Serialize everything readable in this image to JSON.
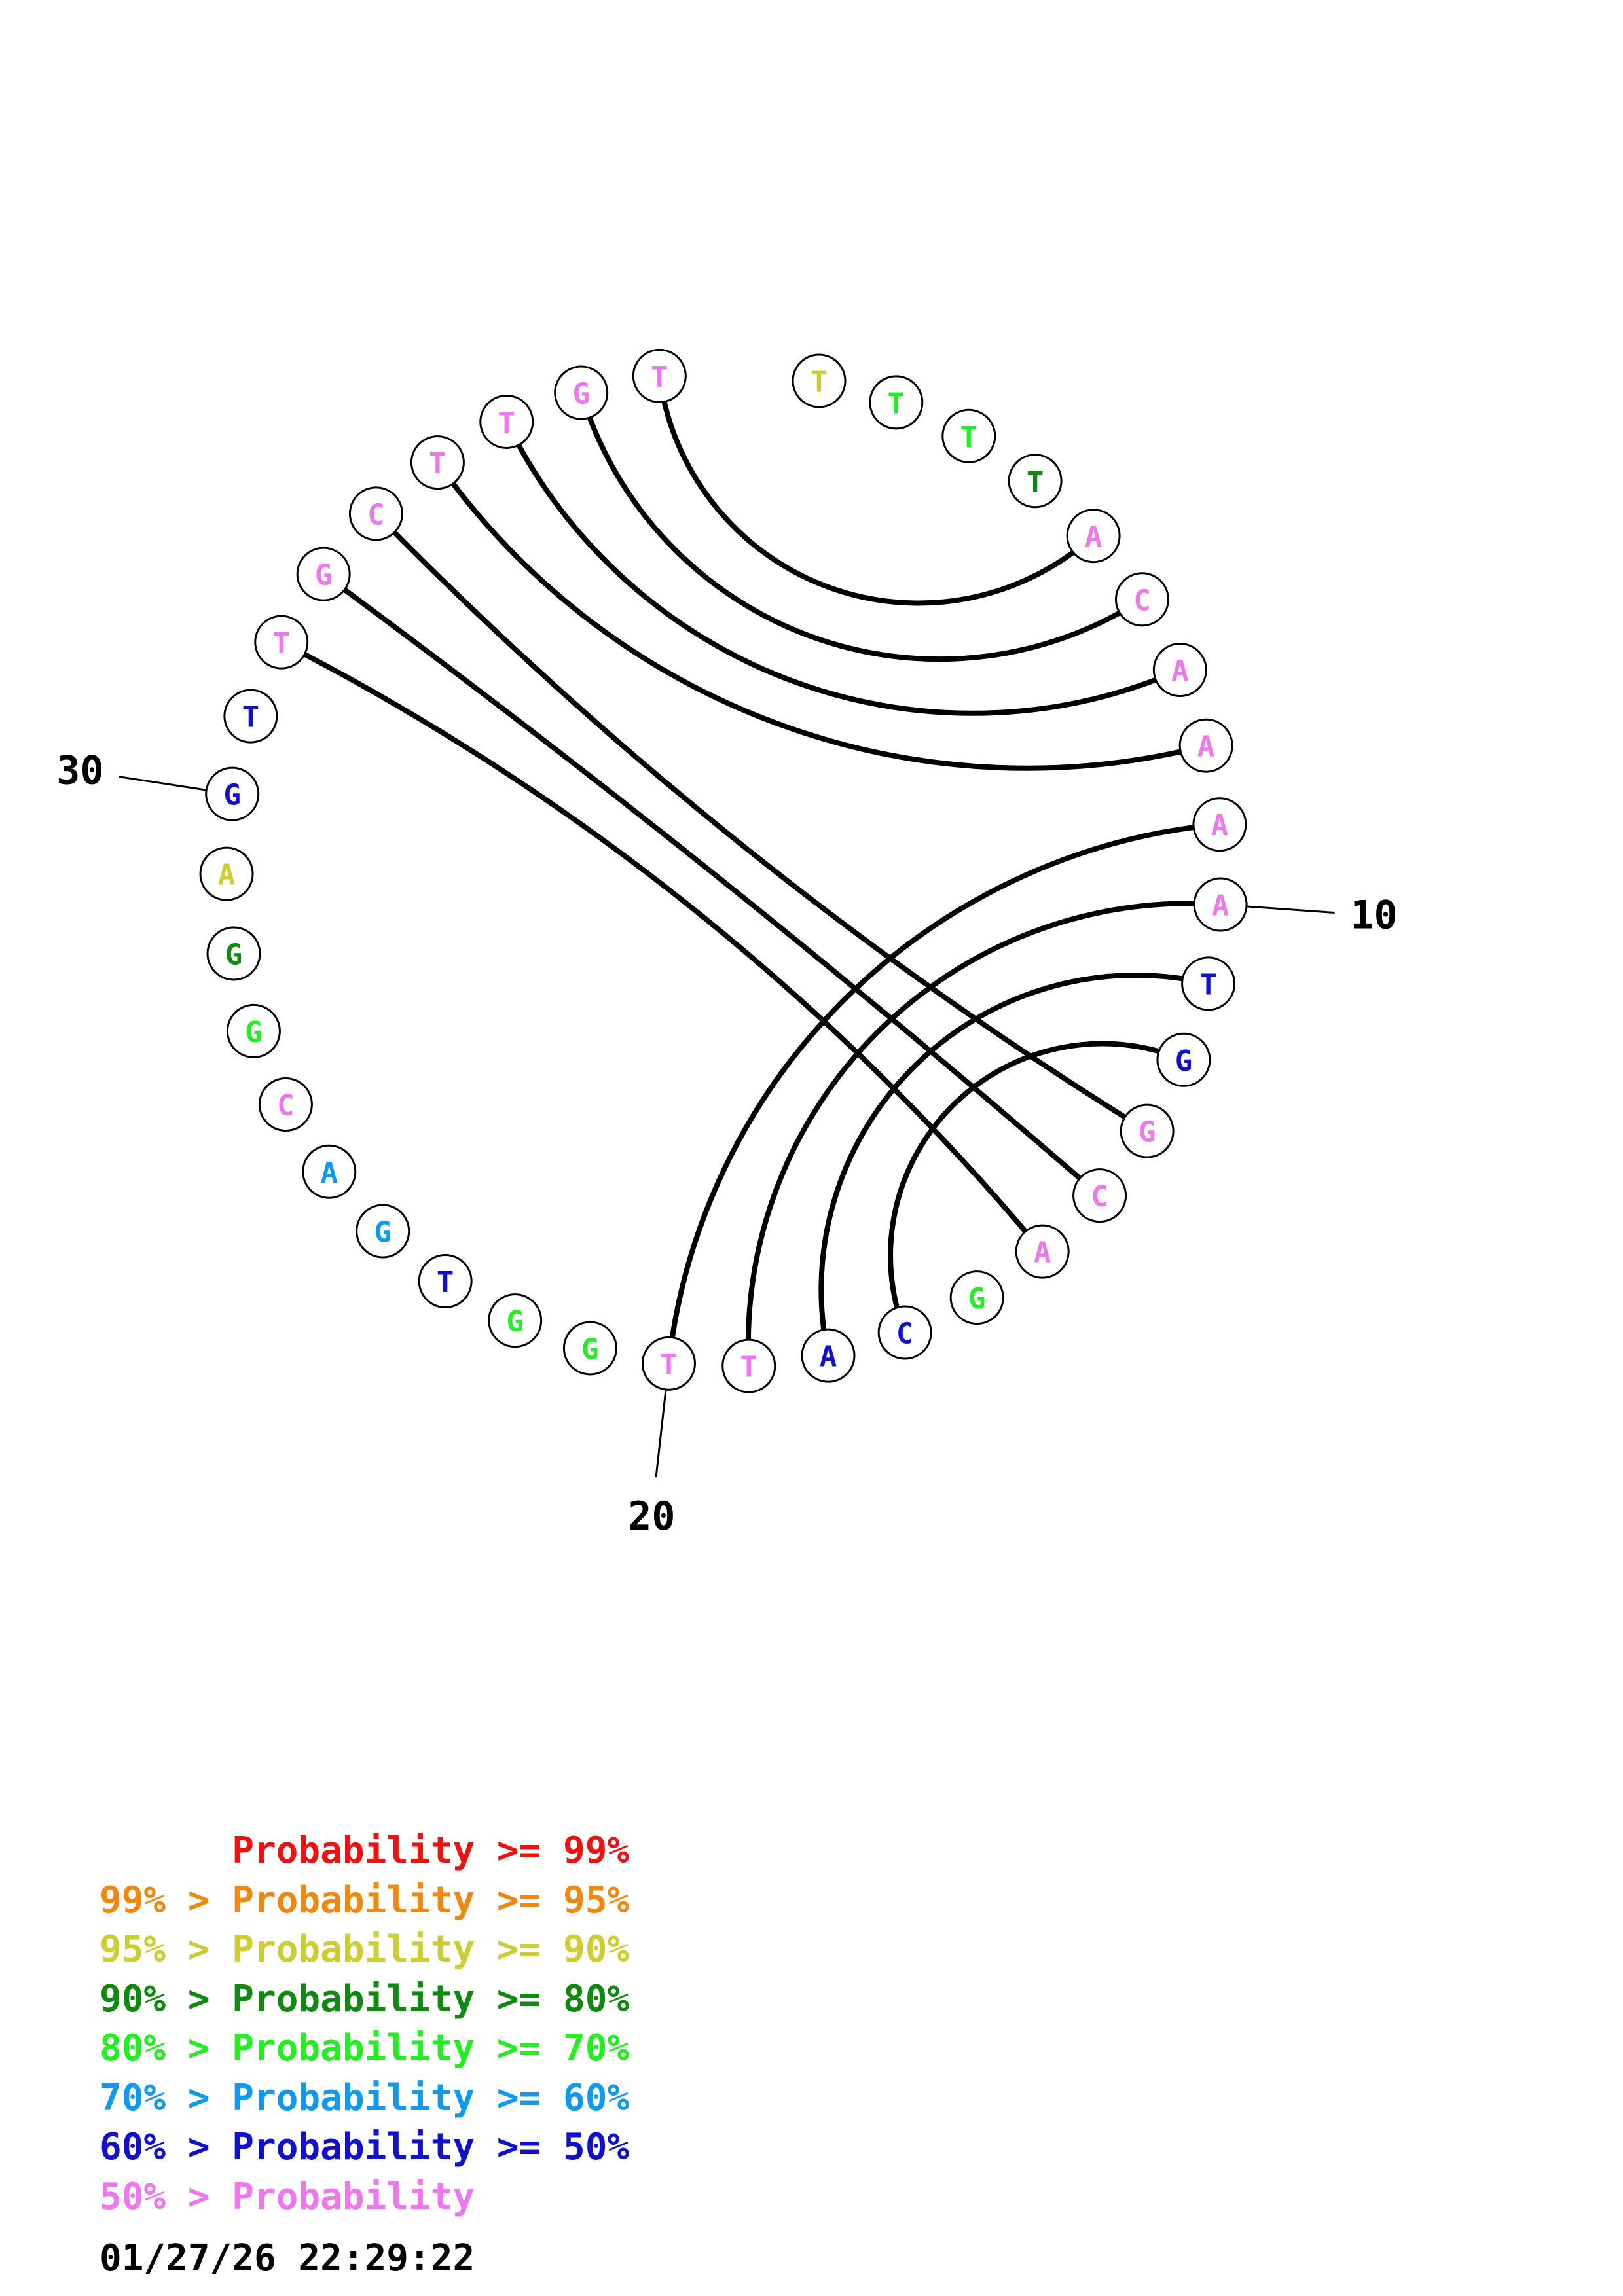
{
  "colors": {
    "p99": "#ee1111",
    "p95": "#ee8811",
    "p90": "#cccc33",
    "p80": "#118811",
    "p70": "#22ee22",
    "p60": "#1199ee",
    "p50": "#1111cc",
    "plow": "#ee77ee"
  },
  "sequence": [
    {
      "n": 1,
      "base": "T",
      "color": "p90"
    },
    {
      "n": 2,
      "base": "T",
      "color": "p70"
    },
    {
      "n": 3,
      "base": "T",
      "color": "p70"
    },
    {
      "n": 4,
      "base": "T",
      "color": "p80"
    },
    {
      "n": 5,
      "base": "A",
      "color": "plow"
    },
    {
      "n": 6,
      "base": "C",
      "color": "plow"
    },
    {
      "n": 7,
      "base": "A",
      "color": "plow"
    },
    {
      "n": 8,
      "base": "A",
      "color": "plow"
    },
    {
      "n": 9,
      "base": "A",
      "color": "plow"
    },
    {
      "n": 10,
      "base": "A",
      "color": "plow"
    },
    {
      "n": 11,
      "base": "T",
      "color": "p50"
    },
    {
      "n": 12,
      "base": "G",
      "color": "p50"
    },
    {
      "n": 13,
      "base": "G",
      "color": "plow"
    },
    {
      "n": 14,
      "base": "C",
      "color": "plow"
    },
    {
      "n": 15,
      "base": "A",
      "color": "plow"
    },
    {
      "n": 16,
      "base": "G",
      "color": "p70"
    },
    {
      "n": 17,
      "base": "C",
      "color": "p50"
    },
    {
      "n": 18,
      "base": "A",
      "color": "p50"
    },
    {
      "n": 19,
      "base": "T",
      "color": "plow"
    },
    {
      "n": 20,
      "base": "T",
      "color": "plow"
    },
    {
      "n": 21,
      "base": "G",
      "color": "p70"
    },
    {
      "n": 22,
      "base": "G",
      "color": "p70"
    },
    {
      "n": 23,
      "base": "T",
      "color": "p50"
    },
    {
      "n": 24,
      "base": "G",
      "color": "p60"
    },
    {
      "n": 25,
      "base": "A",
      "color": "p60"
    },
    {
      "n": 26,
      "base": "C",
      "color": "plow"
    },
    {
      "n": 27,
      "base": "G",
      "color": "p70"
    },
    {
      "n": 28,
      "base": "G",
      "color": "p80"
    },
    {
      "n": 29,
      "base": "A",
      "color": "p90"
    },
    {
      "n": 30,
      "base": "G",
      "color": "p50"
    },
    {
      "n": 31,
      "base": "T",
      "color": "p50"
    },
    {
      "n": 32,
      "base": "T",
      "color": "plow"
    },
    {
      "n": 33,
      "base": "G",
      "color": "plow"
    },
    {
      "n": 34,
      "base": "C",
      "color": "plow"
    },
    {
      "n": 35,
      "base": "T",
      "color": "plow"
    },
    {
      "n": 36,
      "base": "T",
      "color": "plow"
    },
    {
      "n": 37,
      "base": "G",
      "color": "plow"
    },
    {
      "n": 38,
      "base": "T",
      "color": "plow"
    }
  ],
  "pairs": [
    [
      5,
      38
    ],
    [
      6,
      37
    ],
    [
      7,
      36
    ],
    [
      8,
      35
    ],
    [
      9,
      20
    ],
    [
      10,
      19
    ],
    [
      11,
      18
    ],
    [
      12,
      17
    ],
    [
      13,
      34
    ],
    [
      14,
      33
    ],
    [
      15,
      32
    ]
  ],
  "tick_labels": [
    {
      "n": 10,
      "label": "10"
    },
    {
      "n": 20,
      "label": "20"
    },
    {
      "n": 30,
      "label": "30"
    }
  ],
  "legend": [
    {
      "text": "      Probability >= 99%",
      "color": "p99"
    },
    {
      "text": "99% > Probability >= 95%",
      "color": "p95"
    },
    {
      "text": "95% > Probability >= 90%",
      "color": "p90"
    },
    {
      "text": "90% > Probability >= 80%",
      "color": "p80"
    },
    {
      "text": "80% > Probability >= 70%",
      "color": "p70"
    },
    {
      "text": "70% > Probability >= 60%",
      "color": "p60"
    },
    {
      "text": "60% > Probability >= 50%",
      "color": "p50"
    },
    {
      "text": "50% > Probability",
      "color": "plow"
    }
  ],
  "timestamp": "01/27/26 22:29:22"
}
